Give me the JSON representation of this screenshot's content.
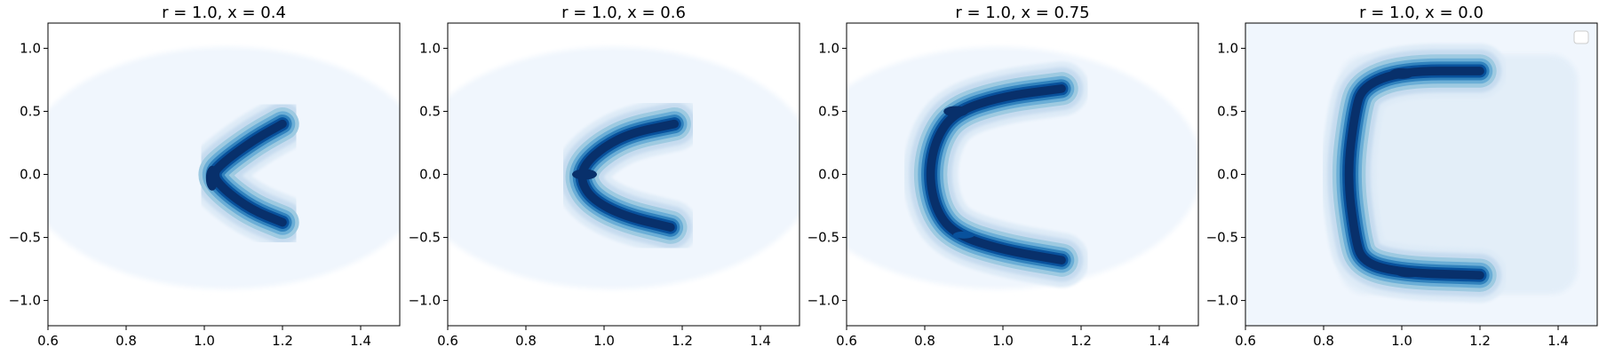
{
  "chart_data": [
    {
      "type": "heatmap",
      "subtype": "filled-contour-density",
      "title": "r = 1.0, x = 0.4",
      "xlim": [
        0.6,
        1.5
      ],
      "ylim": [
        -1.2,
        1.2
      ],
      "xticks": [
        0.6,
        0.8,
        1.0,
        1.2,
        1.4
      ],
      "xtick_labels": [
        "0.6",
        "0.8",
        "1.0",
        "1.2",
        "1.4"
      ],
      "yticks": [
        -1.0,
        -0.5,
        0.0,
        0.5,
        1.0
      ],
      "ytick_labels": [
        "−1.0",
        "−0.5",
        "0.0",
        "0.5",
        "1.0"
      ],
      "grid": false,
      "colormap": "Blues",
      "density_ridge": [
        [
          1.2,
          0.4
        ],
        [
          1.13,
          0.28
        ],
        [
          1.05,
          0.1
        ],
        [
          1.02,
          0.0
        ],
        [
          1.05,
          -0.12
        ],
        [
          1.12,
          -0.28
        ],
        [
          1.2,
          -0.38
        ]
      ],
      "peak": [
        1.02,
        -0.03
      ]
    },
    {
      "type": "heatmap",
      "subtype": "filled-contour-density",
      "title": "r = 1.0, x = 0.6",
      "xlim": [
        0.6,
        1.5
      ],
      "ylim": [
        -1.2,
        1.2
      ],
      "xticks": [
        0.6,
        0.8,
        1.0,
        1.2,
        1.4
      ],
      "xtick_labels": [
        "0.6",
        "0.8",
        "1.0",
        "1.2",
        "1.4"
      ],
      "yticks": [
        -1.0,
        -0.5,
        0.0,
        0.5,
        1.0
      ],
      "ytick_labels": [
        "−1.0",
        "−0.5",
        "0.0",
        "0.5",
        "1.0"
      ],
      "grid": false,
      "colormap": "Blues",
      "density_ridge": [
        [
          1.18,
          0.4
        ],
        [
          1.07,
          0.33
        ],
        [
          1.0,
          0.22
        ],
        [
          0.95,
          0.08
        ],
        [
          0.94,
          -0.05
        ],
        [
          0.97,
          -0.2
        ],
        [
          1.05,
          -0.33
        ],
        [
          1.17,
          -0.42
        ]
      ],
      "peak": [
        0.95,
        0.0
      ]
    },
    {
      "type": "heatmap",
      "subtype": "filled-contour-density",
      "title": "r = 1.0, x = 0.75",
      "xlim": [
        0.6,
        1.5
      ],
      "ylim": [
        -1.2,
        1.2
      ],
      "xticks": [
        0.6,
        0.8,
        1.0,
        1.2,
        1.4
      ],
      "xtick_labels": [
        "0.6",
        "0.8",
        "1.0",
        "1.2",
        "1.4"
      ],
      "yticks": [
        -1.0,
        -0.5,
        0.0,
        0.5,
        1.0
      ],
      "ytick_labels": [
        "−1.0",
        "−0.5",
        "0.0",
        "0.5",
        "1.0"
      ],
      "grid": false,
      "colormap": "Blues",
      "density_ridge": [
        [
          1.15,
          0.68
        ],
        [
          1.0,
          0.62
        ],
        [
          0.88,
          0.5
        ],
        [
          0.83,
          0.3
        ],
        [
          0.81,
          0.0
        ],
        [
          0.83,
          -0.3
        ],
        [
          0.88,
          -0.48
        ],
        [
          1.0,
          -0.6
        ],
        [
          1.15,
          -0.68
        ]
      ],
      "peak": [
        0.88,
        0.5
      ]
    },
    {
      "type": "heatmap",
      "subtype": "filled-contour-density",
      "title": "r = 1.0, x = 0.0",
      "xlim": [
        0.6,
        1.5
      ],
      "ylim": [
        -1.2,
        1.2
      ],
      "xticks": [
        0.6,
        0.8,
        1.0,
        1.2,
        1.4
      ],
      "xtick_labels": [
        "0.6",
        "0.8",
        "1.0",
        "1.2",
        "1.4"
      ],
      "yticks": [
        -1.0,
        -0.5,
        0.0,
        0.5,
        1.0
      ],
      "ytick_labels": [
        "−1.0",
        "−0.5",
        "0.0",
        "0.5",
        "1.0"
      ],
      "grid": false,
      "colormap": "Blues",
      "legend": "top-right",
      "legend_empty": true,
      "density_ridge": [
        [
          1.2,
          0.82
        ],
        [
          1.0,
          0.82
        ],
        [
          0.9,
          0.7
        ],
        [
          0.88,
          0.5
        ],
        [
          0.86,
          0.0
        ],
        [
          0.88,
          -0.5
        ],
        [
          0.9,
          -0.7
        ],
        [
          1.0,
          -0.78
        ],
        [
          1.2,
          -0.8
        ]
      ],
      "peak": [
        1.0,
        0.8
      ]
    }
  ],
  "colors": {
    "level_1": "#f0f6fd",
    "level_2": "#deebf7",
    "level_3": "#c6dbef",
    "level_4": "#9ecae1",
    "level_5": "#6baed6",
    "level_6": "#3182bd",
    "level_7": "#08519c",
    "level_8": "#08306b",
    "axis": "#000000"
  }
}
